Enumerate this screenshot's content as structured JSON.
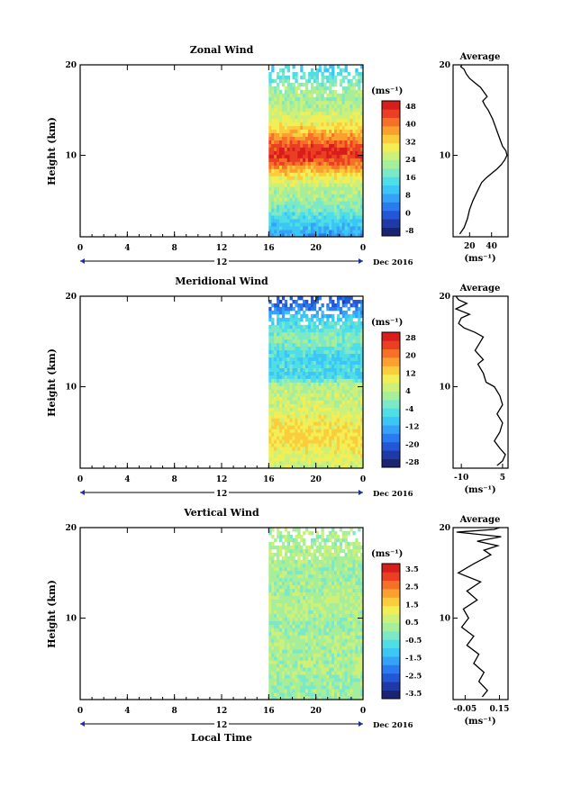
{
  "figure": {
    "xlabel": "Local Time",
    "date_label": "Dec 2016",
    "day_label": "12"
  },
  "chart_data": [
    {
      "type": "heatmap",
      "title": "Zonal Wind",
      "ylabel": "Height (km)",
      "xticks": [
        "0",
        "4",
        "8",
        "12",
        "16",
        "20",
        "0"
      ],
      "yticks": [
        "10",
        "20"
      ],
      "xlim": [
        0,
        24
      ],
      "ylim": [
        1,
        20
      ],
      "data_start_hour": 16,
      "colorbar": {
        "unit": "(ms⁻¹)",
        "labels": [
          "48",
          "40",
          "32",
          "24",
          "16",
          "8",
          "0",
          "-8"
        ],
        "min": -12,
        "max": 52
      },
      "average": {
        "title": "Average",
        "xlabel": "(ms⁻¹)",
        "xticks": [
          "20",
          "40"
        ],
        "xlim": [
          5,
          55
        ],
        "points": [
          [
            11,
            1.3
          ],
          [
            15,
            2
          ],
          [
            18,
            3
          ],
          [
            20,
            4
          ],
          [
            23,
            5
          ],
          [
            27,
            6
          ],
          [
            31,
            7
          ],
          [
            35,
            7.5
          ],
          [
            40,
            8
          ],
          [
            45,
            8.5
          ],
          [
            49,
            9
          ],
          [
            52,
            9.5
          ],
          [
            54,
            10
          ],
          [
            53,
            10.5
          ],
          [
            50,
            11
          ],
          [
            47,
            12
          ],
          [
            44,
            13
          ],
          [
            41,
            14
          ],
          [
            37,
            15
          ],
          [
            34,
            15.5
          ],
          [
            32,
            16
          ],
          [
            36,
            16.5
          ],
          [
            33,
            17
          ],
          [
            30,
            17.5
          ],
          [
            25,
            18
          ],
          [
            20,
            18.5
          ],
          [
            17,
            19
          ],
          [
            15,
            19.5
          ],
          [
            12,
            19.8
          ],
          [
            13,
            20
          ]
        ]
      },
      "profile": [
        [
          1,
          6
        ],
        [
          2,
          10
        ],
        [
          3,
          14
        ],
        [
          4,
          18
        ],
        [
          5,
          22
        ],
        [
          6,
          24
        ],
        [
          7,
          28
        ],
        [
          8,
          34
        ],
        [
          9,
          44
        ],
        [
          10,
          48
        ],
        [
          11,
          44
        ],
        [
          12,
          38
        ],
        [
          13,
          32
        ],
        [
          14,
          28
        ],
        [
          15,
          24
        ],
        [
          16,
          22
        ],
        [
          17,
          22
        ],
        [
          18,
          18
        ],
        [
          19,
          14
        ],
        [
          20,
          10
        ]
      ]
    },
    {
      "type": "heatmap",
      "title": "Meridional Wind",
      "ylabel": "Height (km)",
      "xticks": [
        "0",
        "4",
        "8",
        "12",
        "16",
        "20",
        "0"
      ],
      "yticks": [
        "10",
        "20"
      ],
      "xlim": [
        0,
        24
      ],
      "ylim": [
        1,
        20
      ],
      "data_start_hour": 16,
      "colorbar": {
        "unit": "(ms⁻¹)",
        "labels": [
          "28",
          "20",
          "12",
          "4",
          "-4",
          "-12",
          "-20",
          "-28"
        ],
        "min": -32,
        "max": 32
      },
      "average": {
        "title": "Average",
        "xlabel": "(ms⁻¹)",
        "xticks": [
          "-10",
          "5"
        ],
        "xlim": [
          -13,
          7
        ],
        "points": [
          [
            3,
            1.3
          ],
          [
            5,
            1.8
          ],
          [
            6,
            2.5
          ],
          [
            4,
            3.2
          ],
          [
            2,
            4
          ],
          [
            4,
            5
          ],
          [
            5,
            6
          ],
          [
            3,
            7
          ],
          [
            5,
            8
          ],
          [
            4,
            9
          ],
          [
            2,
            10
          ],
          [
            -1,
            10.5
          ],
          [
            -2,
            11.5
          ],
          [
            -4,
            12.5
          ],
          [
            -2,
            13
          ],
          [
            -5,
            14
          ],
          [
            -3,
            15
          ],
          [
            -2,
            15.5
          ],
          [
            -5,
            16
          ],
          [
            -9,
            16.5
          ],
          [
            -11,
            17
          ],
          [
            -10,
            17.6
          ],
          [
            -7,
            18
          ],
          [
            -12,
            18.6
          ],
          [
            -8,
            19.2
          ],
          [
            -11,
            19.6
          ],
          [
            -12,
            20
          ]
        ]
      },
      "profile": [
        [
          1,
          6
        ],
        [
          2,
          8
        ],
        [
          3,
          10
        ],
        [
          4,
          12
        ],
        [
          5,
          12
        ],
        [
          6,
          10
        ],
        [
          7,
          8
        ],
        [
          8,
          6
        ],
        [
          9,
          5
        ],
        [
          10,
          4
        ],
        [
          11,
          -8
        ],
        [
          12,
          -6
        ],
        [
          13,
          -8
        ],
        [
          14,
          -4
        ],
        [
          15,
          0
        ],
        [
          16,
          -4
        ],
        [
          17,
          -6
        ],
        [
          18,
          -14
        ],
        [
          19,
          -20
        ],
        [
          20,
          -24
        ]
      ]
    },
    {
      "type": "heatmap",
      "title": "Vertical Wind",
      "ylabel": "Height (km)",
      "xticks": [
        "0",
        "4",
        "8",
        "12",
        "16",
        "20",
        "0"
      ],
      "yticks": [
        "10",
        "20"
      ],
      "xlim": [
        0,
        24
      ],
      "ylim": [
        1,
        20
      ],
      "data_start_hour": 16,
      "colorbar": {
        "unit": "(ms⁻¹)",
        "labels": [
          "3.5",
          "2.5",
          "1.5",
          "0.5",
          "-0.5",
          "-1.5",
          "-2.5",
          "-3.5"
        ],
        "min": -4,
        "max": 4
      },
      "average": {
        "title": "Average",
        "xlabel": "(ms⁻¹)",
        "xticks": [
          "-0.05",
          "0.15"
        ],
        "xlim": [
          -0.12,
          0.2
        ],
        "points": [
          [
            0.05,
            1.3
          ],
          [
            0.08,
            2
          ],
          [
            0.03,
            3
          ],
          [
            0.06,
            4
          ],
          [
            0.0,
            5
          ],
          [
            0.03,
            6
          ],
          [
            -0.04,
            7
          ],
          [
            0.0,
            8
          ],
          [
            -0.07,
            9
          ],
          [
            -0.03,
            10
          ],
          [
            -0.06,
            11
          ],
          [
            0.02,
            12
          ],
          [
            -0.04,
            13
          ],
          [
            0.04,
            14
          ],
          [
            -0.09,
            15
          ],
          [
            0.0,
            16
          ],
          [
            0.05,
            16.5
          ],
          [
            0.1,
            17
          ],
          [
            0.06,
            17.5
          ],
          [
            0.14,
            18
          ],
          [
            0.02,
            18.5
          ],
          [
            0.16,
            19
          ],
          [
            -0.1,
            19.5
          ],
          [
            0.12,
            19.8
          ],
          [
            0.15,
            20
          ]
        ]
      },
      "profile": [
        [
          1,
          0.1
        ],
        [
          3,
          0.2
        ],
        [
          5,
          0.4
        ],
        [
          7,
          0.3
        ],
        [
          9,
          0.2
        ],
        [
          11,
          0.5
        ],
        [
          13,
          0.3
        ],
        [
          15,
          0.2
        ],
        [
          17,
          0.4
        ],
        [
          19,
          0.3
        ],
        [
          20,
          0.2
        ]
      ]
    }
  ]
}
